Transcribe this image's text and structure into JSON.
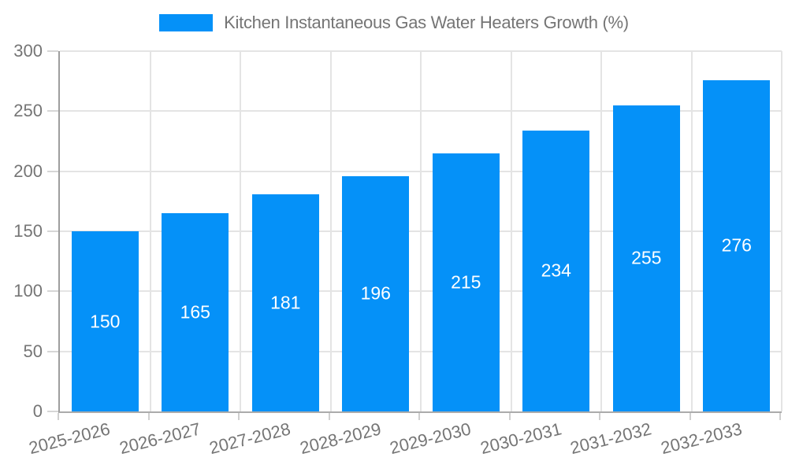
{
  "legend": {
    "label": "Kitchen Instantaneous Gas Water Heaters Growth (%)"
  },
  "chart_data": {
    "type": "bar",
    "title": "Kitchen Instantaneous Gas Water Heaters Growth (%)",
    "categories": [
      "2025-2026",
      "2026-2027",
      "2027-2028",
      "2028-2029",
      "2029-2030",
      "2030-2031",
      "2031-2032",
      "2032-2033"
    ],
    "series": [
      {
        "name": "Kitchen Instantaneous Gas Water Heaters Growth (%)",
        "values": [
          150,
          165,
          181,
          196,
          215,
          234,
          255,
          276
        ]
      }
    ],
    "value_labels": [
      "150",
      "165",
      "181",
      "196",
      "215",
      "234",
      "255",
      "276"
    ],
    "xlabel": "",
    "ylabel": "",
    "ylim": [
      0,
      300
    ],
    "y_ticks": [
      0,
      50,
      100,
      150,
      200,
      250,
      300
    ],
    "grid": "on",
    "legend_position": "top",
    "bar_color": "#0591f8",
    "value_label_color": "#ffffff",
    "axis_text_color": "#757575",
    "grid_color": "#e4e4e4",
    "axis_line_color": "#ababab"
  }
}
